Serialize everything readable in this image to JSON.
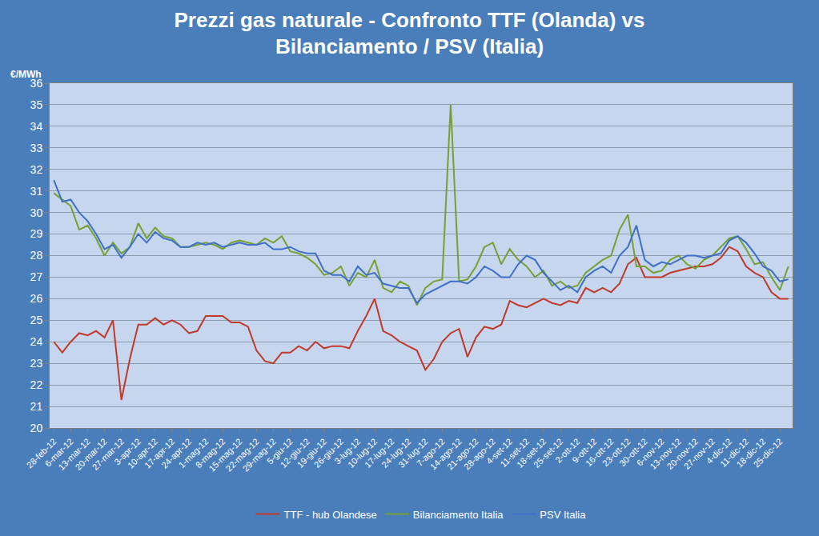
{
  "chart_data": {
    "type": "line",
    "title": "Prezzi gas naturale - Confronto TTF (Olanda) vs\nBilanciamento / PSV (Italia)",
    "y_label": "€/MWh",
    "categories": [
      "28-feb-12",
      null,
      "6-mar-12",
      null,
      "13-mar-12",
      null,
      "20-mar-12",
      null,
      "27-mar-12",
      null,
      "3-apr-12",
      null,
      "10-apr-12",
      null,
      "17-apr-12",
      null,
      "24-apr-12",
      null,
      "1-mag-12",
      null,
      "8-mag-12",
      null,
      "15-mag-12",
      null,
      "22-mag-12",
      null,
      "29-mag-12",
      null,
      "5-giu-12",
      null,
      "12-giu-12",
      null,
      "19-giu-12",
      null,
      "26-giu-12",
      null,
      "3-lug-12",
      null,
      "10-lug-12",
      null,
      "17-lug-12",
      null,
      "24-lug-12",
      null,
      "31-lug-12",
      null,
      "7-ago-12",
      null,
      "14-ago-12",
      null,
      "21-ago-12",
      null,
      "28-ago-12",
      null,
      "4-set-12",
      null,
      "11-set-12",
      null,
      "18-set-12",
      null,
      "25-set-12",
      null,
      "2-ott-12",
      null,
      "9-ott-12",
      null,
      "16-ott-12",
      null,
      "23-ott-12",
      null,
      "30-ott-12",
      null,
      "6-nov-12",
      null,
      "13-nov-12",
      null,
      "20-nov-12",
      null,
      "27-nov-12",
      null,
      "4-dic-12",
      null,
      "11-dic-12",
      null,
      "18-dic-12",
      null,
      "25-dic-12",
      null
    ],
    "series": [
      {
        "name": "TTF - hub Olandese",
        "color": "#c0392b",
        "values": [
          24.0,
          23.5,
          24.0,
          24.4,
          24.3,
          24.5,
          24.2,
          25.0,
          21.3,
          23.2,
          24.8,
          24.8,
          25.1,
          24.8,
          25.0,
          24.8,
          24.4,
          24.5,
          25.2,
          25.2,
          25.2,
          24.9,
          24.9,
          24.7,
          23.6,
          23.1,
          23.0,
          23.5,
          23.5,
          23.8,
          23.6,
          24.0,
          23.7,
          23.8,
          23.8,
          23.7,
          24.5,
          25.2,
          26.0,
          24.5,
          24.3,
          24.0,
          23.8,
          23.6,
          22.7,
          23.2,
          24.0,
          24.4,
          24.6,
          23.3,
          24.2,
          24.7,
          24.6,
          24.8,
          25.9,
          25.7,
          25.6,
          25.8,
          26.0,
          25.8,
          25.7,
          25.9,
          25.8,
          26.5,
          26.3,
          26.5,
          26.3,
          26.7,
          27.6,
          27.9,
          27.0,
          27.0,
          27.0,
          27.2,
          27.3,
          27.4,
          27.5,
          27.5,
          27.6,
          27.9,
          28.4,
          28.2,
          27.5,
          27.2,
          27.0,
          26.3,
          26.0,
          26.0
        ]
      },
      {
        "name": "Bilanciamento Italia",
        "color": "#77a032",
        "values": [
          30.9,
          30.6,
          30.3,
          29.2,
          29.4,
          28.8,
          28.0,
          28.6,
          28.1,
          28.4,
          29.5,
          28.8,
          29.3,
          28.9,
          28.8,
          28.4,
          28.4,
          28.5,
          28.6,
          28.5,
          28.3,
          28.6,
          28.7,
          28.6,
          28.5,
          28.8,
          28.6,
          28.9,
          28.2,
          28.1,
          27.9,
          27.6,
          27.1,
          27.2,
          27.5,
          26.6,
          27.2,
          27.0,
          27.8,
          26.5,
          26.3,
          26.8,
          26.6,
          25.7,
          26.5,
          26.8,
          26.9,
          35.0,
          26.8,
          26.9,
          27.5,
          28.4,
          28.6,
          27.6,
          28.3,
          27.8,
          27.5,
          27.0,
          27.3,
          26.6,
          26.8,
          26.5,
          26.6,
          27.2,
          27.5,
          27.8,
          28.0,
          29.2,
          29.9,
          27.5,
          27.5,
          27.2,
          27.3,
          27.8,
          28.0,
          27.6,
          27.4,
          27.8,
          28.0,
          28.4,
          28.8,
          28.9,
          28.3,
          27.6,
          27.7,
          27.0,
          26.4,
          27.5
        ]
      },
      {
        "name": "PSV Italia",
        "color": "#3f6fc6",
        "values": [
          31.5,
          30.5,
          30.6,
          30.0,
          29.6,
          29.0,
          28.3,
          28.5,
          27.9,
          28.4,
          29.0,
          28.6,
          29.1,
          28.8,
          28.7,
          28.4,
          28.4,
          28.6,
          28.5,
          28.6,
          28.4,
          28.5,
          28.6,
          28.5,
          28.5,
          28.6,
          28.3,
          28.3,
          28.4,
          28.2,
          28.1,
          28.1,
          27.3,
          27.1,
          27.1,
          26.8,
          27.5,
          27.1,
          27.2,
          26.7,
          26.6,
          26.5,
          26.5,
          25.8,
          26.2,
          26.4,
          26.6,
          26.8,
          26.8,
          26.7,
          27.0,
          27.5,
          27.3,
          27.0,
          27.0,
          27.6,
          28.0,
          27.8,
          27.2,
          26.8,
          26.4,
          26.6,
          26.3,
          27.0,
          27.3,
          27.5,
          27.2,
          28.0,
          28.4,
          29.4,
          27.8,
          27.5,
          27.7,
          27.6,
          27.8,
          28.0,
          28.0,
          27.9,
          28.0,
          28.1,
          28.7,
          28.9,
          28.6,
          28.1,
          27.5,
          27.3,
          26.8,
          26.9
        ]
      }
    ],
    "ylim": [
      20,
      36
    ],
    "yticks": [
      20,
      21,
      22,
      23,
      24,
      25,
      26,
      27,
      28,
      29,
      30,
      31,
      32,
      33,
      34,
      35,
      36
    ],
    "grid": true,
    "legend": "bottom"
  }
}
